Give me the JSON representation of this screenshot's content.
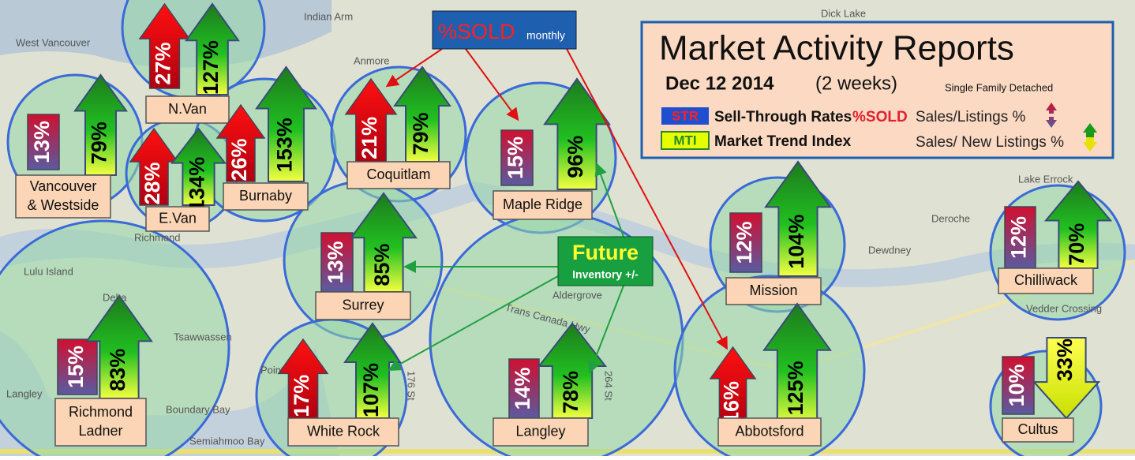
{
  "legend": {
    "title": "Market  Activity Reports",
    "date": "Dec 12 2014",
    "period": "(2 weeks)",
    "segment": "Single Family Detached",
    "str_code": "STR",
    "str_name": "Sell-Through Rates",
    "str_sold": "%SOLD",
    "str_formula": "Sales/Listings %",
    "mti_code": "MTI",
    "mti_name": "Market Trend Index",
    "mti_formula": "Sales/ New Listings %"
  },
  "callouts": {
    "sold": "%SOLD",
    "sold_period": "monthly",
    "future": "Future",
    "future_sub": "Inventory +/-"
  },
  "regions": [
    {
      "name": [
        "Vancouver",
        "& Westside"
      ],
      "str": "13%",
      "mti": "79%"
    },
    {
      "name": [
        "N.Van"
      ],
      "str": "27%",
      "mti": "127%"
    },
    {
      "name": [
        "E.Van"
      ],
      "str": "28%",
      "mti": "134%"
    },
    {
      "name": [
        "Burnaby"
      ],
      "str": "26%",
      "mti": "153%"
    },
    {
      "name": [
        "Coquitlam"
      ],
      "str": "21%",
      "mti": "79%"
    },
    {
      "name": [
        "Maple Ridge"
      ],
      "str": "15%",
      "mti": "96%"
    },
    {
      "name": [
        "Surrey"
      ],
      "str": "13%",
      "mti": "85%"
    },
    {
      "name": [
        "Richmond",
        "Ladner"
      ],
      "str": "15%",
      "mti": "83%"
    },
    {
      "name": [
        "White Rock"
      ],
      "str": "17%",
      "mti": "107%"
    },
    {
      "name": [
        "Langley"
      ],
      "str": "14%",
      "mti": "78%"
    },
    {
      "name": [
        "Mission"
      ],
      "str": "12%",
      "mti": "104%"
    },
    {
      "name": [
        "Abbotsford"
      ],
      "str": "16%",
      "mti": "125%"
    },
    {
      "name": [
        "Chilliwack"
      ],
      "str": "12%",
      "mti": "70%"
    },
    {
      "name": [
        "Cultus"
      ],
      "str": "10%",
      "mti": "33%"
    }
  ],
  "map_labels": [
    "West Vancouver",
    "Indian Arm",
    "Dick Lake",
    "Anmore",
    "Richmond",
    "Lulu Island",
    "Delta",
    "Tsawwassen",
    "Boundary Bay",
    "Semiahmoo Bay",
    "Point Roberts",
    "Langley",
    "Trans Canada Hwy",
    "Aldergrove",
    "Lake Errock",
    "Deroche",
    "Dewdney",
    "Vedder Crossing",
    "176 St",
    "264 St"
  ]
}
